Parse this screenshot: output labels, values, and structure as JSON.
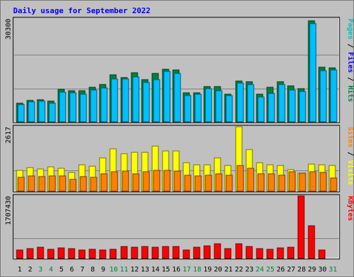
{
  "chart_data": {
    "type": "bar",
    "title": "Daily usage for September 2022",
    "categories": [
      "1",
      "2",
      "3",
      "4",
      "5",
      "6",
      "7",
      "8",
      "9",
      "10",
      "11",
      "12",
      "13",
      "14",
      "15",
      "16",
      "17",
      "18",
      "19",
      "20",
      "21",
      "22",
      "23",
      "24",
      "25",
      "26",
      "27",
      "28",
      "29",
      "30",
      "31"
    ],
    "weekend_days": [
      "3",
      "4",
      "10",
      "11",
      "17",
      "18",
      "24",
      "25",
      "31"
    ],
    "colors": {
      "hits": "#008040",
      "files": "#00c0ff",
      "pages": "#00c0c0",
      "visits": "#ffff00",
      "sites": "#ff8000",
      "kbytes": "#ff0000",
      "weekday_label": "#000000",
      "weekend_label": "#008040",
      "title": "#0000ff",
      "plot_bg": "#c0c0c0",
      "grid": "#808080"
    },
    "panels": [
      {
        "id": "hits-files",
        "max_label": "30300",
        "ymax": 30300,
        "legend": [
          {
            "text": "Pages",
            "color": "#00c0c0"
          },
          {
            "text": " / ",
            "color": "#000000"
          },
          {
            "text": "Files",
            "color": "#0000ff"
          },
          {
            "text": " / ",
            "color": "#000000"
          },
          {
            "text": "Hits",
            "color": "#008040"
          }
        ],
        "series": [
          {
            "name": "Hits",
            "color": "#008040",
            "values": [
              5500,
              6400,
              6600,
              6100,
              9600,
              9200,
              9200,
              10200,
              10900,
              13900,
              13100,
              14400,
              12400,
              14300,
              15400,
              15200,
              8600,
              8500,
              10300,
              10400,
              8100,
              12000,
              11700,
              8200,
              10100,
              11800,
              10500,
              9800,
              29600,
              16000,
              15800
            ]
          },
          {
            "name": "Files",
            "color": "#00c0ff",
            "values": [
              5000,
              5800,
              6000,
              5500,
              8800,
              8500,
              8100,
              9400,
              10000,
              12600,
              12700,
              13200,
              11600,
              12500,
              14800,
              14300,
              7800,
              8100,
              9700,
              9200,
              7700,
              11300,
              10900,
              7300,
              8400,
              10900,
              9300,
              9000,
              28800,
              15100,
              15200
            ]
          }
        ]
      },
      {
        "id": "visits-sites",
        "max_label": "2617",
        "ymax": 2617,
        "legend": [
          {
            "text": "Sites",
            "color": "#ff8000"
          },
          {
            "text": " / ",
            "color": "#000000"
          },
          {
            "text": "Visits",
            "color": "#ffff00"
          }
        ],
        "series": [
          {
            "name": "Visits",
            "color": "#ffff00",
            "values": [
              840,
              960,
              900,
              980,
              920,
              760,
              1060,
              1000,
              1340,
              1720,
              1520,
              1570,
              1580,
              1820,
              1640,
              1640,
              1140,
              1060,
              1080,
              1340,
              1040,
              2617,
              1700,
              1160,
              1080,
              1040,
              860,
              720,
              1100,
              1080,
              1040
            ]
          },
          {
            "name": "Sites",
            "color": "#ff8000",
            "values": [
              560,
              610,
              600,
              630,
              610,
              490,
              590,
              570,
              700,
              780,
              810,
              690,
              780,
              850,
              850,
              820,
              650,
              610,
              640,
              690,
              660,
              1040,
              920,
              700,
              690,
              660,
              780,
              740,
              780,
              760,
              530
            ]
          }
        ]
      },
      {
        "id": "kbytes",
        "max_label": "1707430",
        "ymax": 1707430,
        "legend": [
          {
            "text": "KBytes",
            "color": "#ff0000"
          }
        ],
        "series": [
          {
            "name": "KBytes",
            "color": "#ff0000",
            "values": [
              230000,
              270000,
              310000,
              240000,
              290000,
              270000,
              230000,
              240000,
              220000,
              240000,
              320000,
              310000,
              330000,
              310000,
              330000,
              320000,
              230000,
              310000,
              350000,
              390000,
              260000,
              400000,
              330000,
              260000,
              240000,
              290000,
              300000,
              1707430,
              900000,
              230000,
              0
            ]
          }
        ]
      }
    ]
  }
}
